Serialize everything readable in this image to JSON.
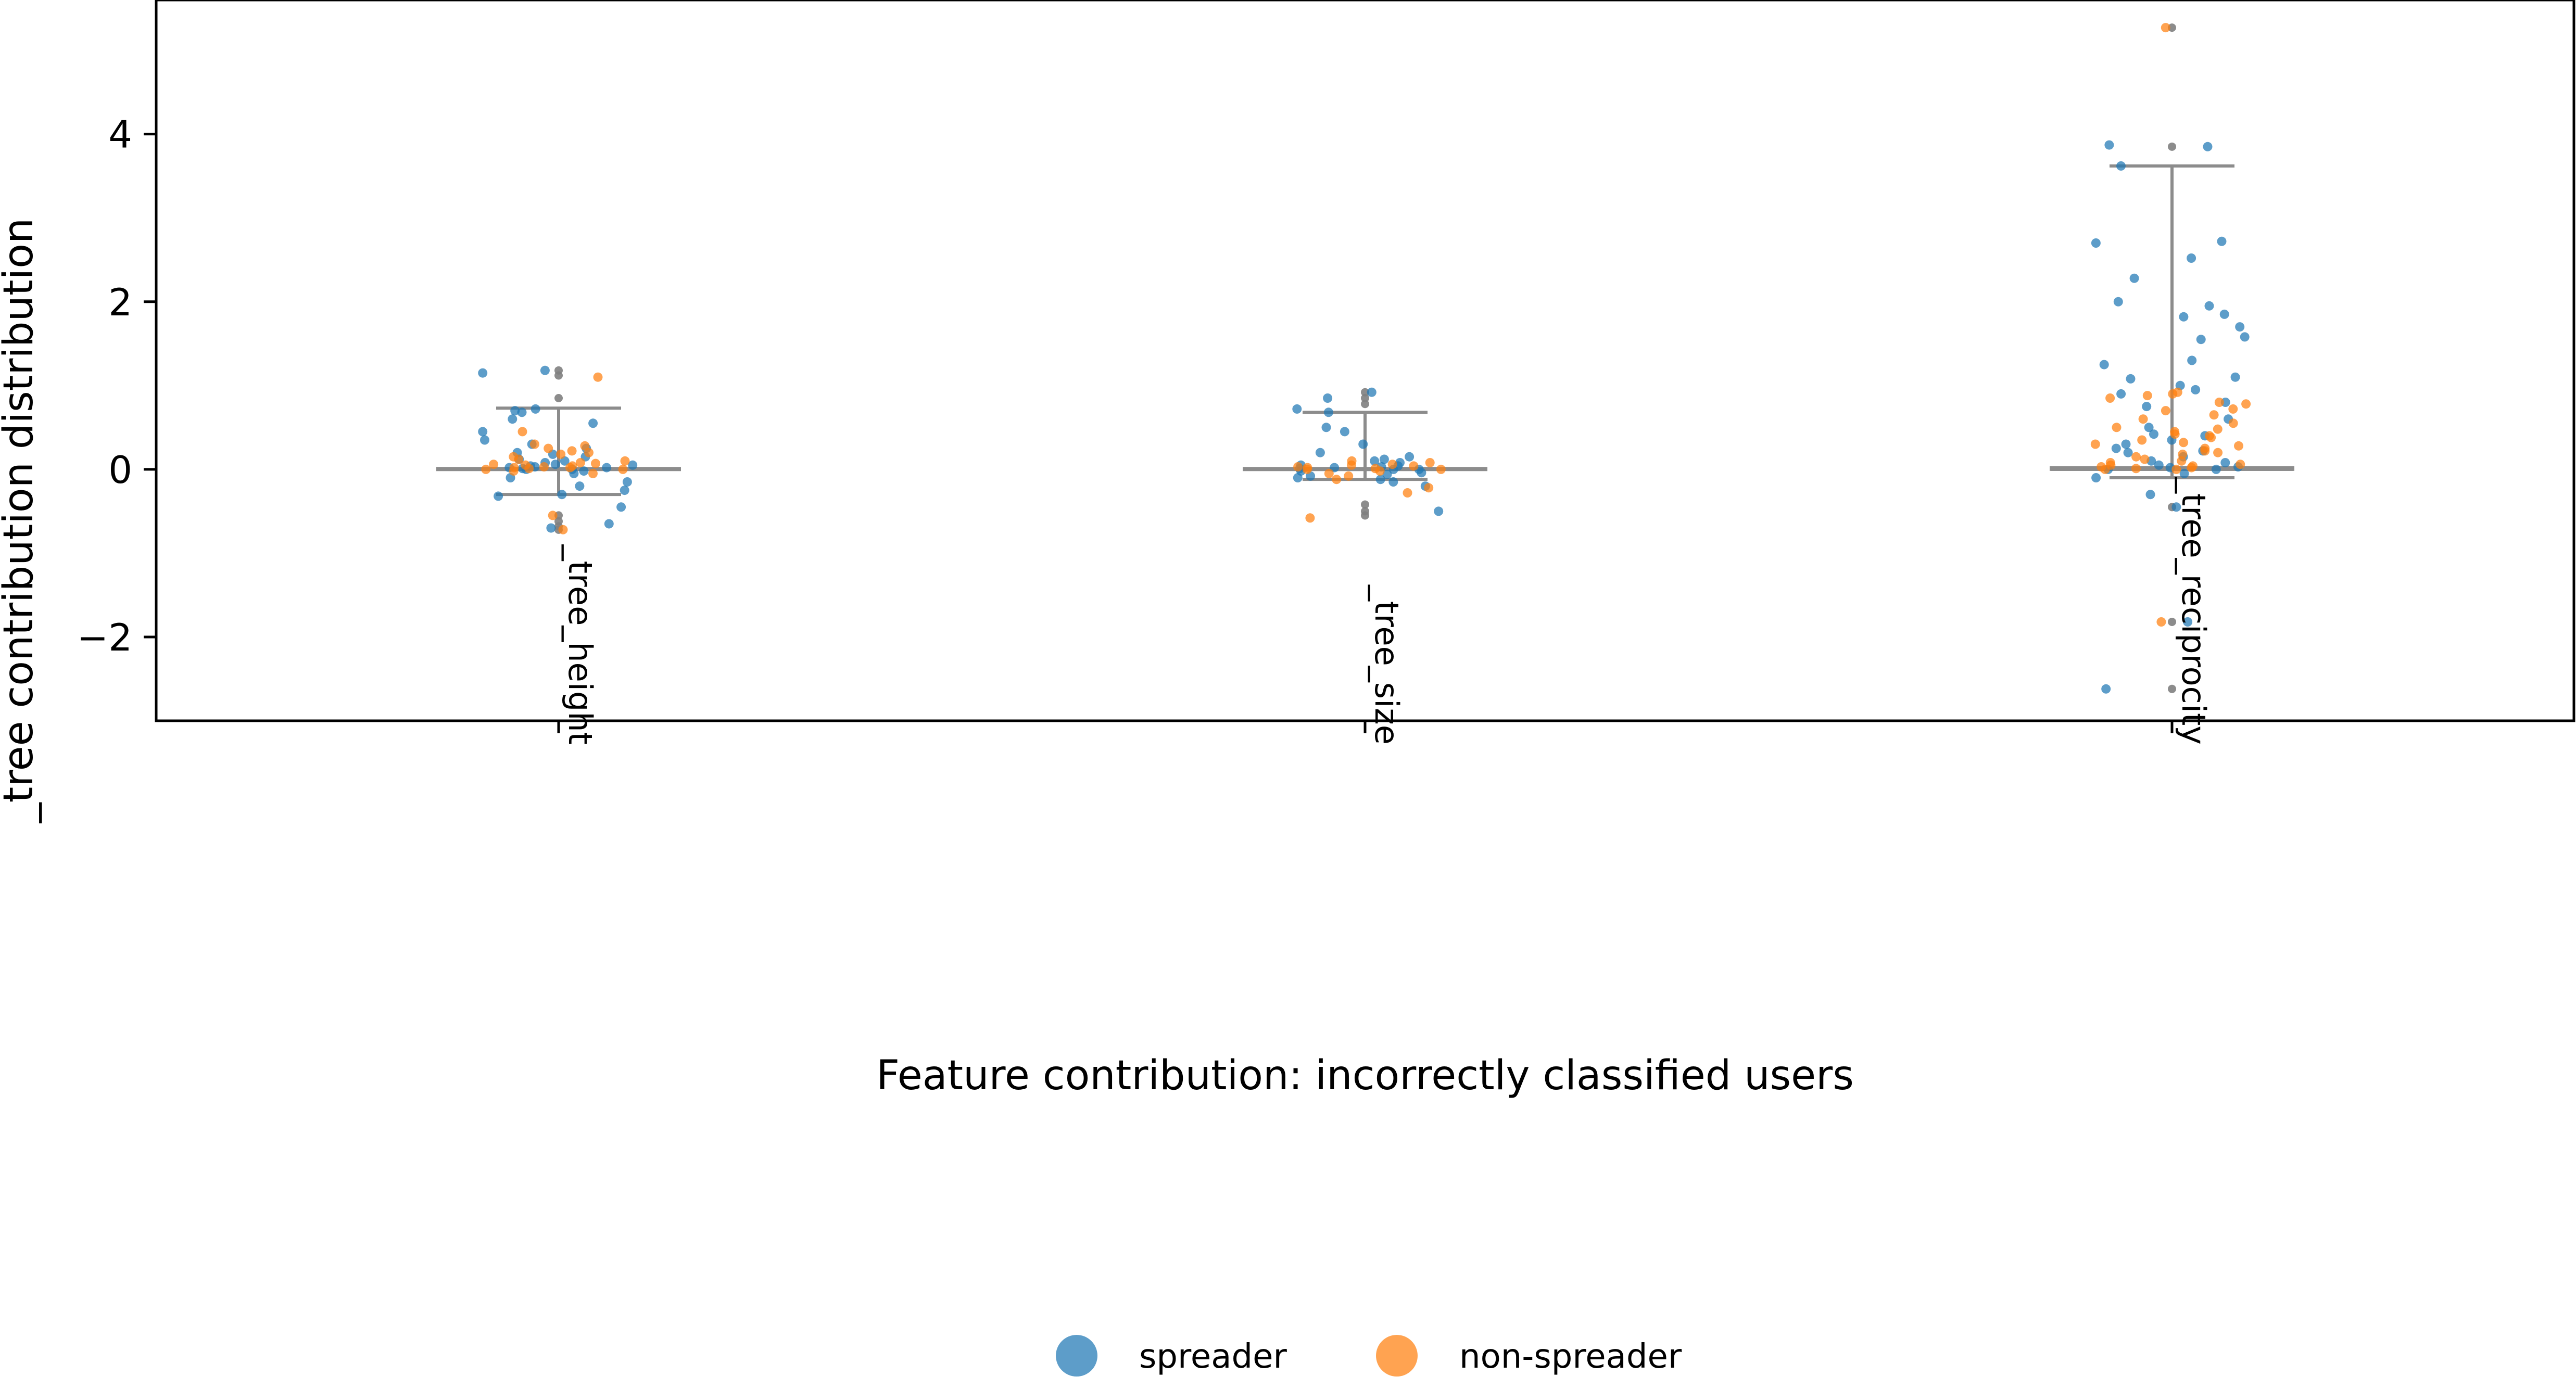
{
  "chart_data": {
    "type": "scatter",
    "subtype": "strip plot with box plot",
    "title": "",
    "xlabel": "Feature contribution: incorrectly classified users",
    "ylabel": "_tree contribution distribution",
    "categories": [
      "_tree_height",
      "_tree_size",
      "_tree_reciprocity"
    ],
    "ylim": [
      -3.0,
      5.6
    ],
    "yticks": [
      -2,
      0,
      2,
      4
    ],
    "ytick_labels": [
      "−2",
      "0",
      "2",
      "4"
    ],
    "grid": false,
    "legend": {
      "placement": "bottom-center",
      "entries": [
        "spreader",
        "non-spreader"
      ]
    },
    "colors": {
      "spreader": "#1f77b4",
      "non-spreader": "#ff7f0e",
      "box": "#8c8c8c",
      "flier": "#808080"
    },
    "boxes": [
      {
        "category": "_tree_height",
        "whisker_low": -0.3,
        "q1": 0.0,
        "median": 0.0,
        "q3": 0.01,
        "whisker_high": 0.73
      },
      {
        "category": "_tree_size",
        "whisker_low": -0.12,
        "q1": 0.0,
        "median": 0.0,
        "q3": 0.01,
        "whisker_high": 0.68
      },
      {
        "category": "_tree_reciprocity",
        "whisker_low": -0.1,
        "q1": 0.0,
        "median": 0.0,
        "q3": 0.02,
        "whisker_high": 3.62
      }
    ],
    "fliers": [
      {
        "category": "_tree_height",
        "values": [
          -0.55,
          -0.62,
          -0.68,
          -0.72,
          0.85,
          1.12,
          1.18
        ]
      },
      {
        "category": "_tree_size",
        "values": [
          -0.42,
          -0.5,
          -0.55,
          0.78,
          0.85,
          0.92
        ]
      },
      {
        "category": "_tree_reciprocity",
        "values": [
          -0.45,
          -1.82,
          -2.62,
          3.85,
          5.27
        ]
      }
    ],
    "series": [
      {
        "name": "spreader",
        "points": [
          [
            "_tree_height",
            1.18
          ],
          [
            "_tree_height",
            1.15
          ],
          [
            "_tree_height",
            0.72
          ],
          [
            "_tree_height",
            0.7
          ],
          [
            "_tree_height",
            0.68
          ],
          [
            "_tree_height",
            0.6
          ],
          [
            "_tree_height",
            0.55
          ],
          [
            "_tree_height",
            0.45
          ],
          [
            "_tree_height",
            0.35
          ],
          [
            "_tree_height",
            0.3
          ],
          [
            "_tree_height",
            0.25
          ],
          [
            "_tree_height",
            0.2
          ],
          [
            "_tree_height",
            0.18
          ],
          [
            "_tree_height",
            0.15
          ],
          [
            "_tree_height",
            0.12
          ],
          [
            "_tree_height",
            0.1
          ],
          [
            "_tree_height",
            0.08
          ],
          [
            "_tree_height",
            0.06
          ],
          [
            "_tree_height",
            0.05
          ],
          [
            "_tree_height",
            0.04
          ],
          [
            "_tree_height",
            0.03
          ],
          [
            "_tree_height",
            0.02
          ],
          [
            "_tree_height",
            0.02
          ],
          [
            "_tree_height",
            0.01
          ],
          [
            "_tree_height",
            0.0
          ],
          [
            "_tree_height",
            0.0
          ],
          [
            "_tree_height",
            -0.02
          ],
          [
            "_tree_height",
            -0.05
          ],
          [
            "_tree_height",
            -0.1
          ],
          [
            "_tree_height",
            -0.15
          ],
          [
            "_tree_height",
            -0.2
          ],
          [
            "_tree_height",
            -0.25
          ],
          [
            "_tree_height",
            -0.3
          ],
          [
            "_tree_height",
            -0.32
          ],
          [
            "_tree_height",
            -0.45
          ],
          [
            "_tree_height",
            -0.65
          ],
          [
            "_tree_height",
            -0.7
          ],
          [
            "_tree_size",
            0.92
          ],
          [
            "_tree_size",
            0.85
          ],
          [
            "_tree_size",
            0.72
          ],
          [
            "_tree_size",
            0.68
          ],
          [
            "_tree_size",
            0.5
          ],
          [
            "_tree_size",
            0.45
          ],
          [
            "_tree_size",
            0.3
          ],
          [
            "_tree_size",
            0.2
          ],
          [
            "_tree_size",
            0.15
          ],
          [
            "_tree_size",
            0.12
          ],
          [
            "_tree_size",
            0.1
          ],
          [
            "_tree_size",
            0.08
          ],
          [
            "_tree_size",
            0.05
          ],
          [
            "_tree_size",
            0.04
          ],
          [
            "_tree_size",
            0.03
          ],
          [
            "_tree_size",
            0.02
          ],
          [
            "_tree_size",
            0.01
          ],
          [
            "_tree_size",
            0.0
          ],
          [
            "_tree_size",
            0.0
          ],
          [
            "_tree_size",
            -0.02
          ],
          [
            "_tree_size",
            -0.04
          ],
          [
            "_tree_size",
            -0.06
          ],
          [
            "_tree_size",
            -0.08
          ],
          [
            "_tree_size",
            -0.1
          ],
          [
            "_tree_size",
            -0.12
          ],
          [
            "_tree_size",
            -0.15
          ],
          [
            "_tree_size",
            -0.2
          ],
          [
            "_tree_size",
            -0.5
          ],
          [
            "_tree_reciprocity",
            3.87
          ],
          [
            "_tree_reciprocity",
            3.85
          ],
          [
            "_tree_reciprocity",
            3.62
          ],
          [
            "_tree_reciprocity",
            2.72
          ],
          [
            "_tree_reciprocity",
            2.7
          ],
          [
            "_tree_reciprocity",
            2.52
          ],
          [
            "_tree_reciprocity",
            2.28
          ],
          [
            "_tree_reciprocity",
            2.0
          ],
          [
            "_tree_reciprocity",
            1.95
          ],
          [
            "_tree_reciprocity",
            1.85
          ],
          [
            "_tree_reciprocity",
            1.82
          ],
          [
            "_tree_reciprocity",
            1.7
          ],
          [
            "_tree_reciprocity",
            1.58
          ],
          [
            "_tree_reciprocity",
            1.55
          ],
          [
            "_tree_reciprocity",
            1.3
          ],
          [
            "_tree_reciprocity",
            1.25
          ],
          [
            "_tree_reciprocity",
            1.1
          ],
          [
            "_tree_reciprocity",
            1.08
          ],
          [
            "_tree_reciprocity",
            1.0
          ],
          [
            "_tree_reciprocity",
            0.95
          ],
          [
            "_tree_reciprocity",
            0.9
          ],
          [
            "_tree_reciprocity",
            0.8
          ],
          [
            "_tree_reciprocity",
            0.75
          ],
          [
            "_tree_reciprocity",
            0.6
          ],
          [
            "_tree_reciprocity",
            0.5
          ],
          [
            "_tree_reciprocity",
            0.42
          ],
          [
            "_tree_reciprocity",
            0.4
          ],
          [
            "_tree_reciprocity",
            0.35
          ],
          [
            "_tree_reciprocity",
            0.3
          ],
          [
            "_tree_reciprocity",
            0.25
          ],
          [
            "_tree_reciprocity",
            0.22
          ],
          [
            "_tree_reciprocity",
            0.2
          ],
          [
            "_tree_reciprocity",
            0.15
          ],
          [
            "_tree_reciprocity",
            0.1
          ],
          [
            "_tree_reciprocity",
            0.08
          ],
          [
            "_tree_reciprocity",
            0.05
          ],
          [
            "_tree_reciprocity",
            0.03
          ],
          [
            "_tree_reciprocity",
            0.02
          ],
          [
            "_tree_reciprocity",
            0.0
          ],
          [
            "_tree_reciprocity",
            0.0
          ],
          [
            "_tree_reciprocity",
            -0.05
          ],
          [
            "_tree_reciprocity",
            -0.1
          ],
          [
            "_tree_reciprocity",
            -0.3
          ],
          [
            "_tree_reciprocity",
            -0.45
          ],
          [
            "_tree_reciprocity",
            -1.82
          ],
          [
            "_tree_reciprocity",
            -2.62
          ]
        ]
      },
      {
        "name": "non-spreader",
        "points": [
          [
            "_tree_height",
            1.1
          ],
          [
            "_tree_height",
            0.45
          ],
          [
            "_tree_height",
            0.3
          ],
          [
            "_tree_height",
            0.28
          ],
          [
            "_tree_height",
            0.25
          ],
          [
            "_tree_height",
            0.22
          ],
          [
            "_tree_height",
            0.2
          ],
          [
            "_tree_height",
            0.18
          ],
          [
            "_tree_height",
            0.15
          ],
          [
            "_tree_height",
            0.12
          ],
          [
            "_tree_height",
            0.1
          ],
          [
            "_tree_height",
            0.08
          ],
          [
            "_tree_height",
            0.07
          ],
          [
            "_tree_height",
            0.06
          ],
          [
            "_tree_height",
            0.05
          ],
          [
            "_tree_height",
            0.04
          ],
          [
            "_tree_height",
            0.03
          ],
          [
            "_tree_height",
            0.02
          ],
          [
            "_tree_height",
            0.02
          ],
          [
            "_tree_height",
            0.01
          ],
          [
            "_tree_height",
            0.0
          ],
          [
            "_tree_height",
            0.0
          ],
          [
            "_tree_height",
            -0.02
          ],
          [
            "_tree_height",
            -0.05
          ],
          [
            "_tree_height",
            -0.55
          ],
          [
            "_tree_height",
            -0.72
          ],
          [
            "_tree_size",
            0.1
          ],
          [
            "_tree_size",
            0.08
          ],
          [
            "_tree_size",
            0.06
          ],
          [
            "_tree_size",
            0.05
          ],
          [
            "_tree_size",
            0.04
          ],
          [
            "_tree_size",
            0.03
          ],
          [
            "_tree_size",
            0.02
          ],
          [
            "_tree_size",
            0.01
          ],
          [
            "_tree_size",
            0.0
          ],
          [
            "_tree_size",
            0.0
          ],
          [
            "_tree_size",
            -0.02
          ],
          [
            "_tree_size",
            -0.05
          ],
          [
            "_tree_size",
            -0.08
          ],
          [
            "_tree_size",
            -0.12
          ],
          [
            "_tree_size",
            -0.22
          ],
          [
            "_tree_size",
            -0.28
          ],
          [
            "_tree_size",
            -0.58
          ],
          [
            "_tree_reciprocity",
            5.27
          ],
          [
            "_tree_reciprocity",
            0.92
          ],
          [
            "_tree_reciprocity",
            0.9
          ],
          [
            "_tree_reciprocity",
            0.88
          ],
          [
            "_tree_reciprocity",
            0.85
          ],
          [
            "_tree_reciprocity",
            0.8
          ],
          [
            "_tree_reciprocity",
            0.78
          ],
          [
            "_tree_reciprocity",
            0.72
          ],
          [
            "_tree_reciprocity",
            0.7
          ],
          [
            "_tree_reciprocity",
            0.65
          ],
          [
            "_tree_reciprocity",
            0.6
          ],
          [
            "_tree_reciprocity",
            0.55
          ],
          [
            "_tree_reciprocity",
            0.5
          ],
          [
            "_tree_reciprocity",
            0.48
          ],
          [
            "_tree_reciprocity",
            0.45
          ],
          [
            "_tree_reciprocity",
            0.42
          ],
          [
            "_tree_reciprocity",
            0.4
          ],
          [
            "_tree_reciprocity",
            0.38
          ],
          [
            "_tree_reciprocity",
            0.35
          ],
          [
            "_tree_reciprocity",
            0.32
          ],
          [
            "_tree_reciprocity",
            0.3
          ],
          [
            "_tree_reciprocity",
            0.28
          ],
          [
            "_tree_reciprocity",
            0.25
          ],
          [
            "_tree_reciprocity",
            0.22
          ],
          [
            "_tree_reciprocity",
            0.2
          ],
          [
            "_tree_reciprocity",
            0.18
          ],
          [
            "_tree_reciprocity",
            0.15
          ],
          [
            "_tree_reciprocity",
            0.12
          ],
          [
            "_tree_reciprocity",
            0.1
          ],
          [
            "_tree_reciprocity",
            0.08
          ],
          [
            "_tree_reciprocity",
            0.06
          ],
          [
            "_tree_reciprocity",
            0.05
          ],
          [
            "_tree_reciprocity",
            0.04
          ],
          [
            "_tree_reciprocity",
            0.03
          ],
          [
            "_tree_reciprocity",
            0.02
          ],
          [
            "_tree_reciprocity",
            0.01
          ],
          [
            "_tree_reciprocity",
            0.0
          ],
          [
            "_tree_reciprocity",
            0.0
          ],
          [
            "_tree_reciprocity",
            -1.82
          ]
        ]
      }
    ]
  }
}
